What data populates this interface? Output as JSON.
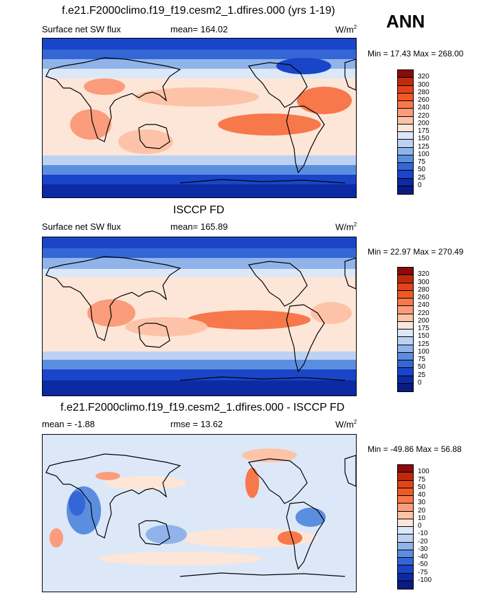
{
  "header": {
    "title1": "f.e21.F2000climo.f19_f19.cesm2_1.dfires.000 (yrs 1-19)",
    "season": "ANN",
    "title2": "ISCCP FD",
    "title3": "f.e21.F2000climo.f19_f19.cesm2_1.dfires.000 - ISCCP FD"
  },
  "panels": [
    {
      "variable": "Surface net SW flux",
      "stat": "mean= 164.02",
      "units_base": "W/m",
      "units_exp": "2",
      "minmax": "Min =  17.43 Max = 268.00"
    },
    {
      "variable": "Surface net SW flux",
      "stat": "mean= 165.89",
      "units_base": "W/m",
      "units_exp": "2",
      "minmax": "Min =  22.97 Max = 270.49"
    },
    {
      "variable": "mean =  -1.88",
      "stat": "rmse =  13.62",
      "units_base": "W/m",
      "units_exp": "2",
      "minmax": "Min = -49.86 Max =  56.88"
    }
  ],
  "colorbars": {
    "abs_labels": [
      "320",
      "300",
      "280",
      "260",
      "240",
      "220",
      "200",
      "175",
      "150",
      "125",
      "100",
      "75",
      "50",
      "25",
      "0"
    ],
    "abs_colors": [
      "#8b0a0a",
      "#c02a0c",
      "#e2431a",
      "#f05a22",
      "#f7784a",
      "#fb9c7c",
      "#fdc3a8",
      "#fde6d8",
      "#dce8f8",
      "#bcd2f2",
      "#90b4ea",
      "#5c8ee0",
      "#3566d6",
      "#1a45c8",
      "#0c2aa4",
      "#0a1c82"
    ],
    "diff_labels": [
      "100",
      "75",
      "50",
      "40",
      "30",
      "20",
      "10",
      "0",
      "-10",
      "-20",
      "-30",
      "-40",
      "-50",
      "-75",
      "-100"
    ],
    "diff_colors": [
      "#8b0a0a",
      "#c02a0c",
      "#e2431a",
      "#f05a22",
      "#f7784a",
      "#fb9c7c",
      "#fdc3a8",
      "#fde6d8",
      "#dce8f8",
      "#bcd2f2",
      "#90b4ea",
      "#5c8ee0",
      "#3566d6",
      "#1a45c8",
      "#0c2aa4",
      "#0a1c82"
    ]
  }
}
